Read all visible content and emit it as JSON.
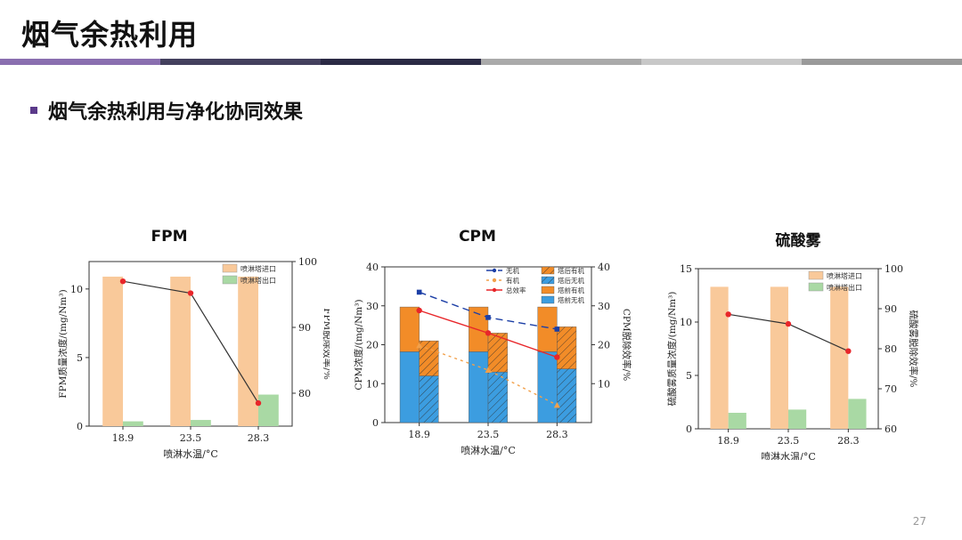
{
  "slide": {
    "title": "烟气余热利用",
    "subtitle": "烟气余热利用与净化协同效果",
    "page_number": "27",
    "band_colors": [
      "#8a6fb0",
      "#44405e",
      "#2b2a45",
      "#aaaaaa",
      "#c8c8c8",
      "#9a9a9a"
    ]
  },
  "chart_data": [
    {
      "type": "bar",
      "title": "FPM",
      "categories": [
        "18.9",
        "23.5",
        "28.3"
      ],
      "xlabel": "喷淋水温/°C",
      "ylabel": "FPM质量浓度/(mg/Nm³)",
      "y2label": "FPM脱除效率/%",
      "ylim": [
        0,
        12
      ],
      "yticks": [
        0,
        5,
        10
      ],
      "y2lim": [
        75,
        100
      ],
      "y2ticks": [
        80,
        90,
        100
      ],
      "series": [
        {
          "name": "喷淋塔进口",
          "kind": "bar",
          "values": [
            10.9,
            10.9,
            10.9
          ],
          "color": "#f9c99a"
        },
        {
          "name": "喷淋塔出口",
          "kind": "bar",
          "values": [
            0.35,
            0.45,
            2.3
          ],
          "color": "#a9d9a4"
        },
        {
          "kind": "line",
          "axis": "y2",
          "values": [
            97.0,
            95.2,
            78.5
          ],
          "color": "#333333",
          "marker": "#e8262a"
        }
      ],
      "legend": "top-right"
    },
    {
      "type": "bar",
      "title": "CPM",
      "categories": [
        "18.9",
        "23.5",
        "28.3"
      ],
      "xlabel": "喷淋水温/°C",
      "ylabel": "CPM浓度/(mg/Nm³)",
      "y2label": "CPM脱除效率/%",
      "ylim": [
        0,
        40
      ],
      "yticks": [
        0,
        10,
        20,
        30,
        40
      ],
      "y2lim": [
        0,
        40
      ],
      "y2ticks": [
        10,
        20,
        30,
        40
      ],
      "stacks": [
        {
          "name": "塔前无机",
          "values": [
            18.2,
            18.2,
            18.2
          ],
          "color": "#3c9de0",
          "hatch": false,
          "group": "before"
        },
        {
          "name": "塔前有机",
          "values": [
            11.5,
            11.5,
            11.5
          ],
          "color": "#f28c28",
          "hatch": false,
          "group": "before"
        },
        {
          "name": "塔后无机",
          "values": [
            12.0,
            13.0,
            13.8
          ],
          "color": "#3c9de0",
          "hatch": true,
          "group": "after"
        },
        {
          "name": "塔后有机",
          "values": [
            9.0,
            10.0,
            10.8
          ],
          "color": "#f28c28",
          "hatch": true,
          "group": "after"
        }
      ],
      "lines": [
        {
          "name": "无机",
          "values": [
            33.5,
            27.0,
            24.0
          ],
          "color": "#1c3fa6",
          "dash": "8,5",
          "marker": "square"
        },
        {
          "name": "有机",
          "values": [
            19.8,
            13.5,
            4.5
          ],
          "color": "#f2a04a",
          "dash": "3,4",
          "marker": "triangle"
        },
        {
          "name": "总效率",
          "values": [
            28.8,
            23.0,
            16.8
          ],
          "color": "#e8262a",
          "dash": "",
          "marker": "circle"
        }
      ],
      "legend": "top-right"
    },
    {
      "type": "bar",
      "title": "硫酸雾",
      "categories": [
        "18.9",
        "23.5",
        "28.3"
      ],
      "xlabel": "喷淋水温/°C",
      "ylabel": "硫酸雾质量浓度/(mg/Nm³)",
      "y2label": "硫酸雾脱除效率/%",
      "ylim": [
        0,
        15
      ],
      "yticks": [
        0,
        5,
        10,
        15
      ],
      "y2lim": [
        60,
        100
      ],
      "y2ticks": [
        60,
        70,
        80,
        90,
        100
      ],
      "series": [
        {
          "name": "喷淋塔进口",
          "kind": "bar",
          "values": [
            13.3,
            13.3,
            13.3
          ],
          "color": "#f9c99a"
        },
        {
          "name": "喷淋塔出口",
          "kind": "bar",
          "values": [
            1.5,
            1.8,
            2.8
          ],
          "color": "#a9d9a4"
        },
        {
          "kind": "line",
          "axis": "y2",
          "values": [
            88.6,
            86.2,
            79.4
          ],
          "color": "#333333",
          "marker": "#e8262a"
        }
      ],
      "legend": "top-right"
    }
  ]
}
